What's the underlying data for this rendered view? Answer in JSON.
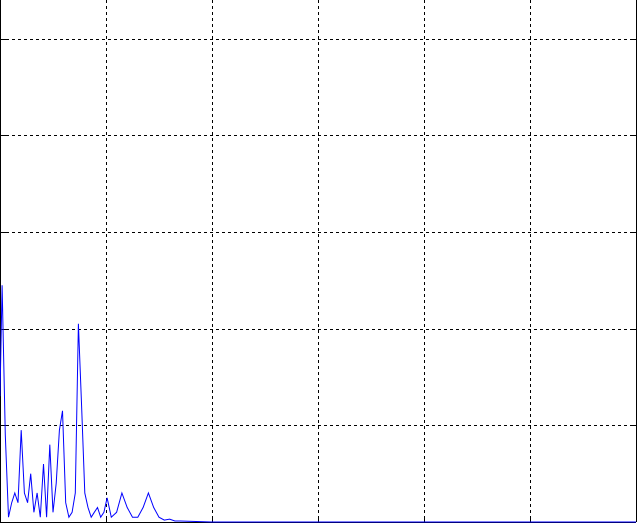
{
  "chart_data": {
    "type": "line",
    "title": "",
    "xlabel": "",
    "ylabel": "",
    "xlim": [
      0,
      6
    ],
    "ylim": [
      0,
      5.4
    ],
    "xticks": [
      1,
      2,
      3,
      4,
      5
    ],
    "yticks": [
      1,
      2,
      3,
      4,
      5
    ],
    "grid": true,
    "grid_style": "dashed",
    "legend": "none",
    "colors": {
      "line": "#0000ff",
      "grid": "#000000",
      "axes": "#000000",
      "background": "#ffffff"
    },
    "series": [
      {
        "x": [
          0,
          0.02,
          0.05,
          0.08,
          0.11,
          0.14,
          0.17,
          0.2,
          0.23,
          0.26,
          0.29,
          0.32,
          0.35,
          0.38,
          0.41,
          0.44,
          0.47,
          0.5,
          0.53,
          0.56,
          0.59,
          0.62,
          0.65,
          0.68,
          0.71,
          0.74,
          0.77,
          0.8,
          0.83,
          0.86,
          0.89,
          0.92,
          0.95,
          0.98,
          1.01,
          1.05,
          1.1,
          1.15,
          1.2,
          1.25,
          1.3,
          1.35,
          1.4,
          1.45,
          1.5,
          1.55,
          1.6,
          1.65,
          1.7,
          2,
          3,
          4,
          5,
          6
        ],
        "y": [
          1.3,
          2.45,
          0.9,
          0.05,
          0.2,
          0.3,
          0.2,
          0.95,
          0.3,
          0.2,
          0.5,
          0.1,
          0.3,
          0.05,
          0.6,
          0.05,
          0.8,
          0.1,
          0.4,
          0.95,
          1.15,
          0.2,
          0.05,
          0.1,
          0.3,
          2.05,
          1.2,
          0.3,
          0.15,
          0.05,
          0.1,
          0.15,
          0.05,
          0.1,
          0.25,
          0.05,
          0.1,
          0.3,
          0.15,
          0.05,
          0.05,
          0.15,
          0.3,
          0.15,
          0.05,
          0.02,
          0.03,
          0.01,
          0.01,
          0.0,
          0.0,
          0.0,
          0.0,
          0.0
        ]
      }
    ]
  }
}
